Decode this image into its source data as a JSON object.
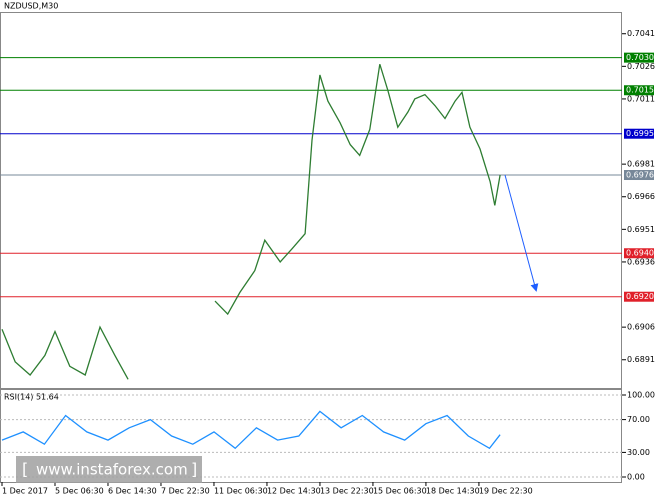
{
  "chart_data": {
    "type": "line",
    "title": "NZDUSD,M30",
    "xlim": [
      0,
      11.7
    ],
    "xticks": [
      {
        "value": 0,
        "label": "1 Dec 2017"
      },
      {
        "value": 1,
        "label": "5 Dec 06:30"
      },
      {
        "value": 2,
        "label": "6 Dec 14:30"
      },
      {
        "value": 3,
        "label": "7 Dec 22:30"
      },
      {
        "value": 4,
        "label": "11 Dec 06:30"
      },
      {
        "value": 5,
        "label": "12 Dec 14:30"
      },
      {
        "value": 6,
        "label": "13 Dec 22:30"
      },
      {
        "value": 7,
        "label": "15 Dec 06:30"
      },
      {
        "value": 8,
        "label": "18 Dec 14:30"
      },
      {
        "value": 9,
        "label": "19 Dec 22:30"
      }
    ],
    "ylim": [
      0.6878,
      0.7051
    ],
    "yticks": [
      0.7041,
      0.7026,
      0.7011,
      0.6981,
      0.6966,
      0.6951,
      0.6936,
      0.6906,
      0.6891
    ],
    "series": [
      {
        "color": "#2e7d32",
        "x": [
          0,
          0.25,
          0.53,
          0.81,
          1,
          1.28,
          1.57,
          1.85,
          2.13,
          2.38,
          3.2,
          4.02,
          4.26,
          4.49,
          4.77,
          4.96,
          5.25,
          5.47,
          5.72,
          5.85,
          6,
          6.15,
          6.38,
          6.57,
          6.75,
          6.94,
          7.13,
          7.28,
          7.47,
          7.66,
          7.79,
          7.98,
          8.17,
          8.36,
          8.55,
          8.68,
          8.83,
          9.02,
          9.21,
          9.3,
          9.4
        ],
        "values": [
          0.6905,
          0.689,
          0.6884,
          0.6893,
          0.6904,
          0.6888,
          0.6884,
          0.6906,
          0.6893,
          0.6882,
          null,
          0.6918,
          0.6912,
          0.6922,
          0.6932,
          0.6946,
          0.6936,
          0.6942,
          0.6949,
          0.6992,
          0.7022,
          0.701,
          0.7,
          0.699,
          0.6985,
          0.6997,
          0.7027,
          0.7015,
          0.6998,
          0.7005,
          0.7011,
          0.7013,
          0.7008,
          0.7002,
          0.701,
          0.7014,
          0.6998,
          0.6988,
          0.6973,
          0.6962,
          0.6976
        ]
      }
    ],
    "levels": [
      {
        "value": 0.703,
        "label": "0.7030",
        "color": "#008000"
      },
      {
        "value": 0.7015,
        "label": "0.7015",
        "color": "#008000"
      },
      {
        "value": 0.6995,
        "label": "0.6995",
        "color": "#0000cc"
      },
      {
        "value": 0.6976,
        "label": "0.6976",
        "color": "#778899"
      },
      {
        "value": 0.694,
        "label": "0.6940",
        "color": "#e0202a"
      },
      {
        "value": 0.692,
        "label": "0.6920",
        "color": "#e0202a"
      }
    ],
    "rsi": {
      "title": "RSI(14) 51.64",
      "color": "#1e90ff",
      "ylim": [
        0,
        100
      ],
      "yticks": [
        {
          "value": 100,
          "label": "100.00"
        },
        {
          "value": 70,
          "label": "70.00"
        },
        {
          "value": 30,
          "label": "30.00"
        },
        {
          "value": 0,
          "label": "0.00"
        }
      ],
      "x": [
        0,
        0.4,
        0.8,
        1.2,
        1.6,
        2,
        2.4,
        2.8,
        3.2,
        3.6,
        4,
        4.4,
        4.8,
        5.2,
        5.6,
        6,
        6.4,
        6.8,
        7.2,
        7.6,
        8,
        8.4,
        8.8,
        9.2,
        9.4
      ],
      "values": [
        45,
        55,
        40,
        75,
        55,
        45,
        60,
        70,
        50,
        40,
        55,
        35,
        60,
        45,
        50,
        80,
        60,
        75,
        55,
        45,
        65,
        75,
        50,
        35,
        51.64
      ]
    }
  },
  "watermark": "www.instaforex.com"
}
